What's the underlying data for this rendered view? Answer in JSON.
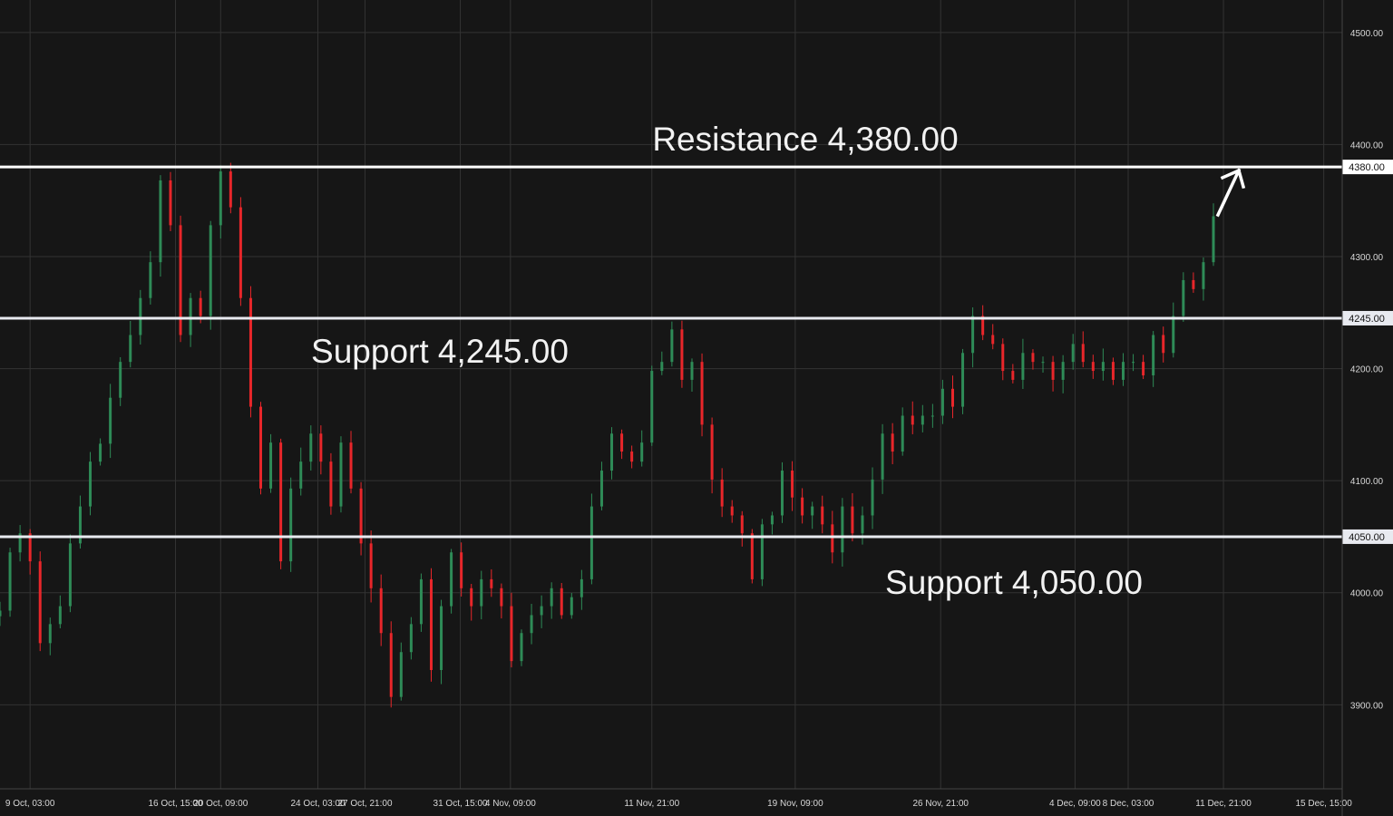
{
  "chart_data": {
    "type": "candlestick",
    "title": "",
    "xlabel": "",
    "ylabel": "",
    "ylim": [
      3825,
      4529
    ],
    "grid": true,
    "colors": {
      "background": "#161616",
      "grid": "#333333",
      "up": "#2e8b57",
      "down": "#e8262a",
      "level": "#ffffff"
    },
    "y_ticks": [
      3900,
      4000,
      4100,
      4200,
      4300,
      4400,
      4500
    ],
    "y_tick_labels": [
      "3900.00",
      "4000.00",
      "4100.00",
      "4200.00",
      "4300.00",
      "4400.00",
      "4500.00"
    ],
    "x_ticks": [
      {
        "label": "9 Oct, 03:00",
        "index": 3
      },
      {
        "label": "16 Oct, 15:00",
        "index": 17.5
      },
      {
        "label": "20 Oct, 09:00",
        "index": 22
      },
      {
        "label": "24 Oct, 03:00",
        "index": 31.7
      },
      {
        "label": "27 Oct, 21:00",
        "index": 36.4
      },
      {
        "label": "31 Oct, 15:00",
        "index": 45.9
      },
      {
        "label": "4 Nov, 09:00",
        "index": 50.9
      },
      {
        "label": "11 Nov, 21:00",
        "index": 65
      },
      {
        "label": "19 Nov, 09:00",
        "index": 79.3
      },
      {
        "label": "26 Nov, 21:00",
        "index": 93.8
      },
      {
        "label": "4 Dec, 09:00",
        "index": 107.2
      },
      {
        "label": "8 Dec, 03:00",
        "index": 112.5
      },
      {
        "label": "11 Dec, 21:00",
        "index": 122
      },
      {
        "label": "15 Dec, 15:00",
        "index": 132
      }
    ],
    "close": [
      3984,
      4036,
      4053,
      4028,
      3955,
      3972,
      3988,
      4044,
      4077,
      4117,
      4133,
      4174,
      4206,
      4230,
      4263,
      4295,
      4368,
      4328,
      4230,
      4263,
      4247,
      4328,
      4376,
      4344,
      4263,
      4166,
      4093,
      4134,
      4028,
      4093,
      4117,
      4142,
      4117,
      4077,
      4134,
      4093,
      4044,
      4004,
      3964,
      3907,
      3947,
      3972,
      4012,
      3931,
      3988,
      4036,
      4004,
      3988,
      4012,
      4004,
      3988,
      3939,
      3964,
      3980,
      3988,
      4004,
      3980,
      3996,
      4012,
      4077,
      4109,
      4142,
      4126,
      4117,
      4134,
      4198,
      4206,
      4235,
      4190,
      4206,
      4150,
      4101,
      4077,
      4069,
      4053,
      4012,
      4061,
      4069,
      4109,
      4085,
      4069,
      4077,
      4061,
      4036,
      4077,
      4053,
      4069,
      4101,
      4142,
      4126,
      4158,
      4150,
      4158,
      4158,
      4182,
      4166,
      4214,
      4247,
      4230,
      4222,
      4198,
      4190,
      4214,
      4206,
      4206,
      4190,
      4206,
      4222,
      4206,
      4198,
      4206,
      4190,
      4206,
      4206,
      4194,
      4230,
      4214,
      4247,
      4279,
      4271,
      4295,
      4336
    ],
    "levels": [
      {
        "label": "Resistance 4,380.00",
        "value": 4380,
        "axis_label": "4380.00"
      },
      {
        "label": "Support 4,245.00",
        "value": 4245,
        "axis_label": "4245.00"
      },
      {
        "label": "Support 4,050.00",
        "value": 4050,
        "axis_label": "4050.00"
      }
    ],
    "annotations": [
      {
        "type": "arrow",
        "direction": "up-right",
        "target": "resistance"
      }
    ]
  }
}
